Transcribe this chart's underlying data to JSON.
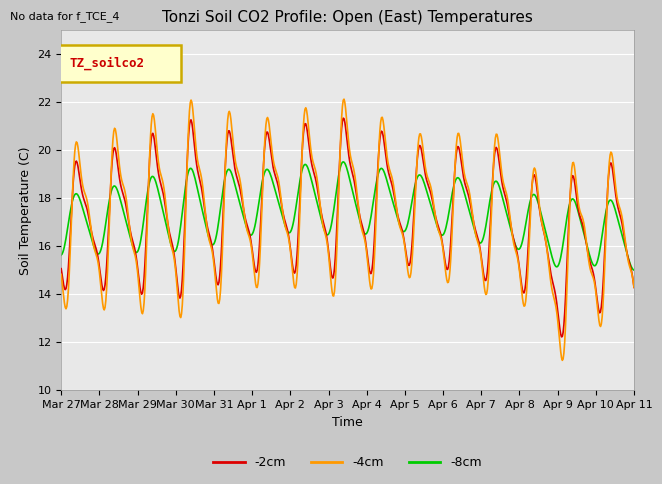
{
  "title": "Tonzi Soil CO2 Profile: Open (East) Temperatures",
  "ylabel": "Soil Temperature (C)",
  "xlabel": "Time",
  "no_data_text": "No data for f_TCE_4",
  "legend_label_text": "TZ_soilco2",
  "ylim": [
    10,
    25
  ],
  "xlim": [
    0,
    15
  ],
  "axes_bg_color": "#e8e8e8",
  "fig_bg_color": "#c8c8c8",
  "line_colors": {
    "neg2cm": "#dd0000",
    "neg4cm": "#ff9900",
    "neg8cm": "#00cc00"
  },
  "tick_labels": [
    "Mar 27",
    "Mar 28",
    "Mar 29",
    "Mar 30",
    "Mar 31",
    "Apr 1",
    "Apr 2",
    "Apr 3",
    "Apr 4",
    "Apr 5",
    "Apr 6",
    "Apr 7",
    "Apr 8",
    "Apr 9",
    "Apr 10",
    "Apr 11"
  ],
  "n_days": 15,
  "samples_per_day": 48
}
